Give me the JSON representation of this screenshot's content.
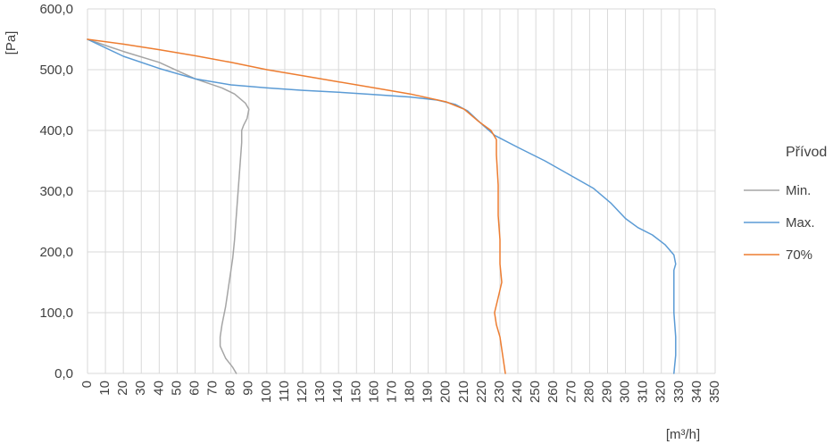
{
  "chart_data": {
    "type": "line",
    "title": "",
    "xlabel": "[m³/h]",
    "ylabel": "[Pa]",
    "xlim": [
      0,
      350
    ],
    "ylim": [
      0,
      600
    ],
    "x_ticks": [
      "0",
      "10",
      "20",
      "30",
      "40",
      "50",
      "60",
      "70",
      "80",
      "90",
      "100",
      "110",
      "120",
      "130",
      "140",
      "150",
      "160",
      "170",
      "180",
      "190",
      "200",
      "210",
      "220",
      "230",
      "240",
      "250",
      "260",
      "270",
      "280",
      "290",
      "300",
      "310",
      "320",
      "330",
      "340",
      "350"
    ],
    "y_ticks": [
      "0,0",
      "100,0",
      "200,0",
      "300,0",
      "400,0",
      "500,0",
      "600,0"
    ],
    "grid": true,
    "legend": {
      "title": "Přívod",
      "position": "right"
    },
    "series": [
      {
        "name": "Min.",
        "color": "#A5A5A5",
        "points": [
          [
            0,
            550
          ],
          [
            20,
            530
          ],
          [
            40,
            512
          ],
          [
            60,
            485
          ],
          [
            75,
            470
          ],
          [
            82,
            460
          ],
          [
            88,
            445
          ],
          [
            90,
            435
          ],
          [
            89,
            420
          ],
          [
            87,
            408
          ],
          [
            86,
            400
          ],
          [
            86,
            380
          ],
          [
            85,
            340
          ],
          [
            84,
            300
          ],
          [
            83,
            260
          ],
          [
            82,
            220
          ],
          [
            81,
            190
          ],
          [
            79,
            150
          ],
          [
            77,
            110
          ],
          [
            75,
            80
          ],
          [
            74,
            60
          ],
          [
            74,
            45
          ],
          [
            77,
            25
          ],
          [
            81,
            10
          ],
          [
            83,
            0
          ]
        ]
      },
      {
        "name": "Max.",
        "color": "#5B9BD5",
        "points": [
          [
            0,
            550
          ],
          [
            20,
            522
          ],
          [
            40,
            502
          ],
          [
            60,
            485
          ],
          [
            80,
            475
          ],
          [
            100,
            470
          ],
          [
            120,
            466
          ],
          [
            140,
            463
          ],
          [
            160,
            459
          ],
          [
            180,
            455
          ],
          [
            195,
            450
          ],
          [
            205,
            443
          ],
          [
            212,
            432
          ],
          [
            220,
            410
          ],
          [
            227,
            392
          ],
          [
            240,
            372
          ],
          [
            255,
            350
          ],
          [
            270,
            325
          ],
          [
            282,
            305
          ],
          [
            292,
            280
          ],
          [
            300,
            255
          ],
          [
            307,
            240
          ],
          [
            315,
            228
          ],
          [
            322,
            212
          ],
          [
            327,
            195
          ],
          [
            328,
            180
          ],
          [
            327,
            170
          ],
          [
            327,
            140
          ],
          [
            327,
            100
          ],
          [
            328,
            60
          ],
          [
            328,
            30
          ],
          [
            327,
            0
          ]
        ]
      },
      {
        "name": "70%",
        "color": "#ED7D31",
        "points": [
          [
            0,
            550
          ],
          [
            20,
            542
          ],
          [
            40,
            533
          ],
          [
            60,
            523
          ],
          [
            80,
            512
          ],
          [
            100,
            500
          ],
          [
            120,
            490
          ],
          [
            140,
            480
          ],
          [
            160,
            470
          ],
          [
            180,
            460
          ],
          [
            200,
            447
          ],
          [
            210,
            435
          ],
          [
            218,
            415
          ],
          [
            225,
            400
          ],
          [
            228,
            385
          ],
          [
            228,
            360
          ],
          [
            229,
            310
          ],
          [
            229,
            260
          ],
          [
            230,
            220
          ],
          [
            230,
            180
          ],
          [
            231,
            150
          ],
          [
            229,
            125
          ],
          [
            227,
            100
          ],
          [
            228,
            80
          ],
          [
            230,
            60
          ],
          [
            231,
            40
          ],
          [
            232,
            20
          ],
          [
            233,
            0
          ]
        ]
      }
    ]
  }
}
